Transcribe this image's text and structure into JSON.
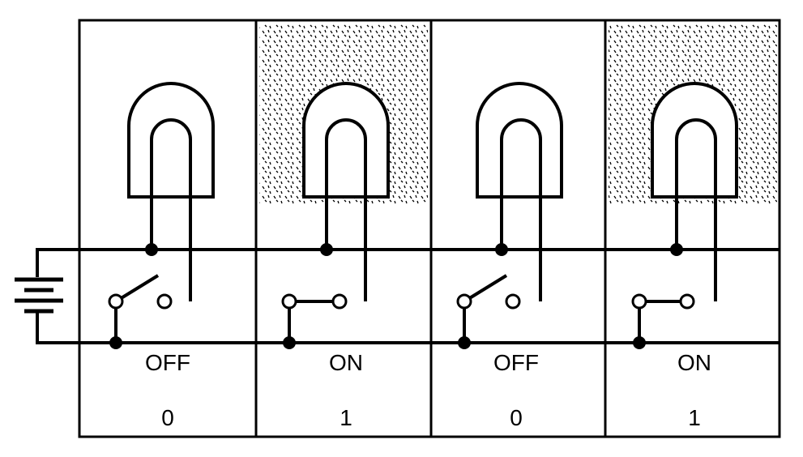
{
  "cells": [
    {
      "state": "OFF",
      "value": "0",
      "lit": false
    },
    {
      "state": "ON",
      "value": "1",
      "lit": true
    },
    {
      "state": "OFF",
      "value": "0",
      "lit": false
    },
    {
      "state": "ON",
      "value": "1",
      "lit": true
    }
  ],
  "colors": {
    "line": "#000000",
    "background": "#ffffff"
  }
}
